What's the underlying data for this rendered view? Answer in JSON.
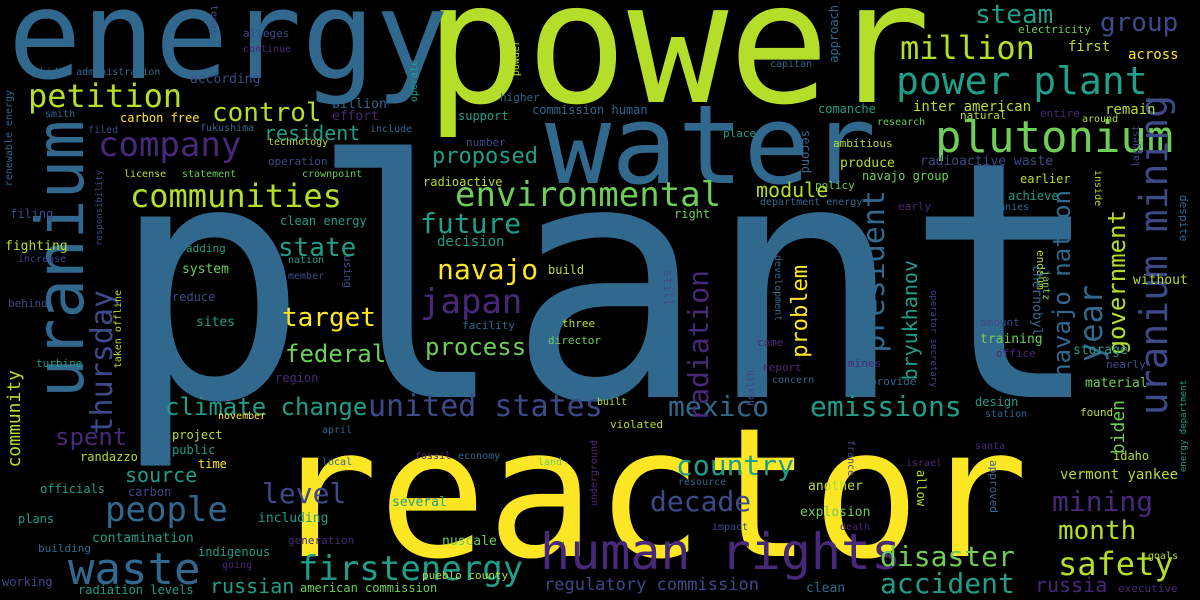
{
  "colors": {
    "background": "#000000",
    "lime": "#b5de2b",
    "yellow": "#fde725",
    "blue": "#31688e",
    "green": "#6ece58",
    "teal": "#1f9e89",
    "purple": "#482878",
    "indigo": "#3e4989"
  },
  "words": {
    "plant": "plant",
    "reactor": "reactor",
    "power": "power",
    "water": "water",
    "energy": "energy",
    "uranium": "uranium",
    "human_rights": "human rights",
    "plutonium": "plutonium",
    "power_plant": "power plant",
    "waste": "waste",
    "communities": "communities",
    "company": "company",
    "petition": "petition",
    "uranium_mining": "uranium mining",
    "million": "million",
    "environmental": "environmental",
    "japan": "japan",
    "united_states": "united states",
    "firstenergy": "firstenergy",
    "people": "people",
    "safety": "safety",
    "navajo_nation": "navajo nation",
    "president": "president",
    "mexico": "mexico",
    "emissions": "emissions",
    "climate_change": "climate change",
    "country": "country",
    "decade": "decade",
    "disaster": "disaster",
    "accident": "accident",
    "thursday": "thursday",
    "government": "government",
    "year": "year",
    "navajo": "navajo",
    "state": "state",
    "future": "future",
    "target": "target",
    "federal": "federal",
    "control": "control",
    "steam": "steam",
    "group": "group",
    "mining": "mining",
    "month": "month",
    "level": "level",
    "process": "process",
    "proposed": "proposed",
    "radiation": "radiation",
    "spent": "spent",
    "source": "source",
    "problem": "problem",
    "resident": "resident",
    "module": "module",
    "bryukhanov": "bryukhanov",
    "russian": "russian",
    "russia": "russia",
    "biden": "biden",
    "community": "community",
    "state_": "state",
    "mining_": "mining"
  },
  "small_words": [
    "first",
    "across",
    "electricity",
    "approach",
    "texas",
    "alleges",
    "continue",
    "biden administration",
    "according",
    "billion",
    "effort",
    "carbon free",
    "fukushima",
    "smith",
    "include",
    "renewable energy",
    "filed",
    "higher",
    "support",
    "commission human",
    "place",
    "comanche",
    "inter american",
    "remain",
    "around",
    "research",
    "entire",
    "natural",
    "capitan",
    "number",
    "technology",
    "operation",
    "crownpoint",
    "license",
    "statement",
    "responsibility",
    "filing",
    "clean energy",
    "radioactive",
    "ambitious",
    "produce",
    "radioactive waste",
    "navajo group",
    "earlier",
    "achieve",
    "department energy",
    "policy",
    "right",
    "early",
    "companies",
    "inside",
    "despite",
    "largest",
    "decision",
    "adding",
    "nation",
    "increase",
    "fighting",
    "member",
    "using",
    "still",
    "build",
    "endaum",
    "chernobyl",
    "jantz",
    "behind",
    "without",
    "reduce",
    "sites",
    "system",
    "facility",
    "three",
    "director",
    "development",
    "operator secretary",
    "amount",
    "training",
    "storage",
    "office",
    "nearly",
    "turbine",
    "taken offline",
    "region",
    "report",
    "come",
    "health",
    "concern",
    "mines",
    "provide",
    "material",
    "station",
    "design",
    "found",
    "energy department",
    "project",
    "public",
    "november",
    "april",
    "time",
    "randazzo",
    "violated",
    "built",
    "economy",
    "land",
    "local",
    "fossil",
    "resource",
    "another",
    "france",
    "israel",
    "santa",
    "idaho",
    "vermont yankee",
    "officials",
    "carbon",
    "plans",
    "explosion",
    "allow",
    "approved",
    "including",
    "several",
    "nuscale",
    "impact",
    "death",
    "underground",
    "contamination",
    "generation",
    "indigenous",
    "going",
    "building",
    "working",
    "radiation levels",
    "american commission",
    "pueblo county",
    "regulatory commission",
    "clean",
    "executive",
    "goals",
    "second",
    "powder",
    "operate",
    "mexico"
  ]
}
